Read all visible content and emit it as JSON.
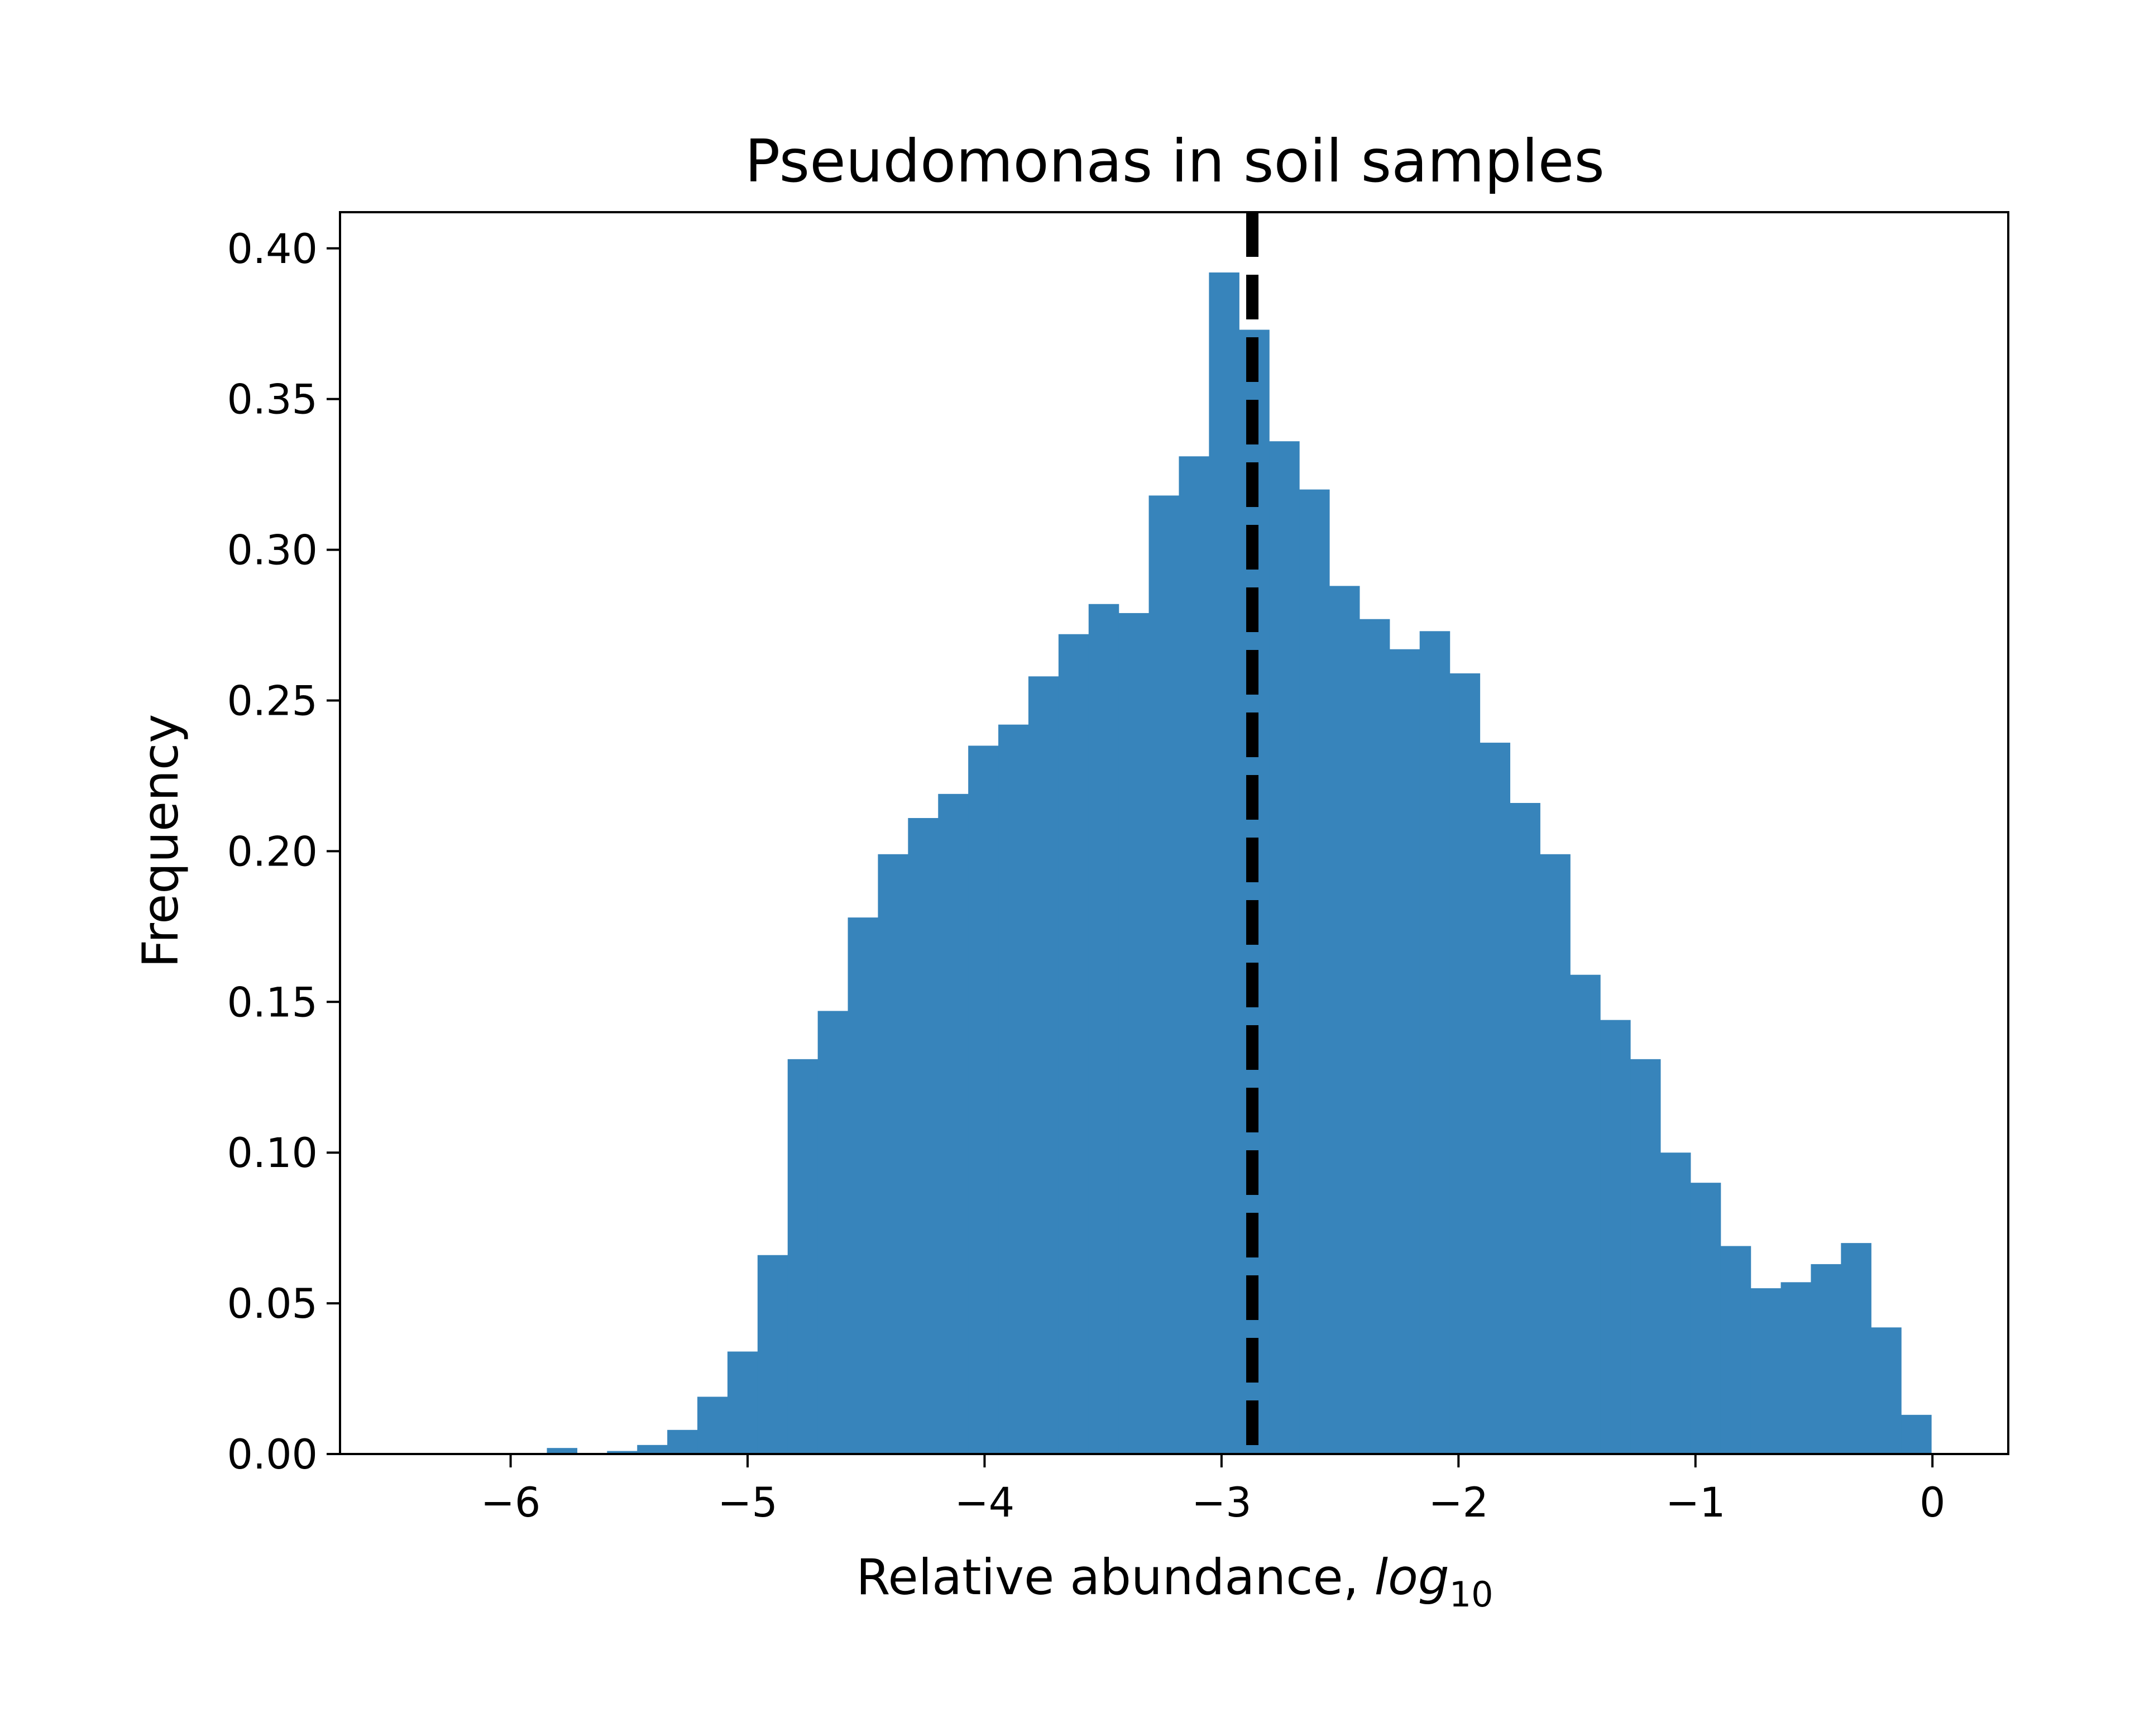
{
  "chart_data": {
    "type": "bar",
    "title": "Pseudomonas in soil samples",
    "xlabel": "Relative abundance, ",
    "xlabel_math": "log",
    "xlabel_subscript": "10",
    "ylabel": "Frequency",
    "xlim": [
      -6.72,
      0.32
    ],
    "ylim": [
      0,
      0.412
    ],
    "x_ticks": [
      -6,
      -5,
      -4,
      -3,
      -2,
      -1,
      0
    ],
    "x_tick_labels": [
      "−6",
      "−5",
      "−4",
      "−3",
      "−2",
      "−1",
      "0"
    ],
    "y_ticks": [
      0.0,
      0.05,
      0.1,
      0.15,
      0.2,
      0.25,
      0.3,
      0.35,
      0.4
    ],
    "y_tick_labels": [
      "0.00",
      "0.05",
      "0.10",
      "0.15",
      "0.20",
      "0.25",
      "0.30",
      "0.35",
      "0.40"
    ],
    "bin_width": 0.127,
    "bin_left_edges": [
      -5.847,
      -5.72,
      -5.593,
      -5.466,
      -5.339,
      -5.212,
      -5.085,
      -4.958,
      -4.831,
      -4.704,
      -4.577,
      -4.45,
      -4.323,
      -4.196,
      -4.069,
      -3.942,
      -3.815,
      -3.688,
      -3.561,
      -3.434,
      -3.307,
      -3.18,
      -3.053,
      -2.926,
      -2.799,
      -2.672,
      -2.545,
      -2.418,
      -2.291,
      -2.164,
      -2.037,
      -1.91,
      -1.783,
      -1.656,
      -1.529,
      -1.402,
      -1.275,
      -1.148,
      -1.021,
      -0.894,
      -0.767,
      -0.64,
      -0.513,
      -0.386,
      -0.259,
      -0.132
    ],
    "values": [
      0.002,
      0.0,
      0.001,
      0.003,
      0.008,
      0.019,
      0.034,
      0.066,
      0.131,
      0.147,
      0.178,
      0.199,
      0.211,
      0.219,
      0.235,
      0.242,
      0.258,
      0.272,
      0.282,
      0.279,
      0.318,
      0.331,
      0.392,
      0.373,
      0.336,
      0.32,
      0.288,
      0.277,
      0.267,
      0.273,
      0.259,
      0.236,
      0.216,
      0.199,
      0.159,
      0.144,
      0.131,
      0.1,
      0.09,
      0.069,
      0.055,
      0.057,
      0.063,
      0.07,
      0.042,
      0.013
    ],
    "reference_line": {
      "x": -2.87,
      "style": "dashed",
      "color": "#000000"
    },
    "bar_color": "#3784bb",
    "grid": false,
    "legend": "none"
  }
}
